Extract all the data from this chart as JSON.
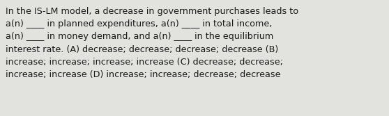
{
  "text": "In the IS-LM model, a decrease in government purchases leads to\na(n) ____ in planned expenditures, a(n) ____ in total income,\na(n) ____ in money demand, and a(n) ____ in the equilibrium\ninterest rate. (A) decrease; decrease; decrease; decrease (B)\nincrease; increase; increase; increase (C) decrease; decrease;\nincrease; increase (D) increase; increase; decrease; decrease",
  "bg_color": "#e2e2de",
  "text_color": "#1a1a1a",
  "font_size": 9.2,
  "fig_width": 5.58,
  "fig_height": 1.67,
  "dpi": 100
}
